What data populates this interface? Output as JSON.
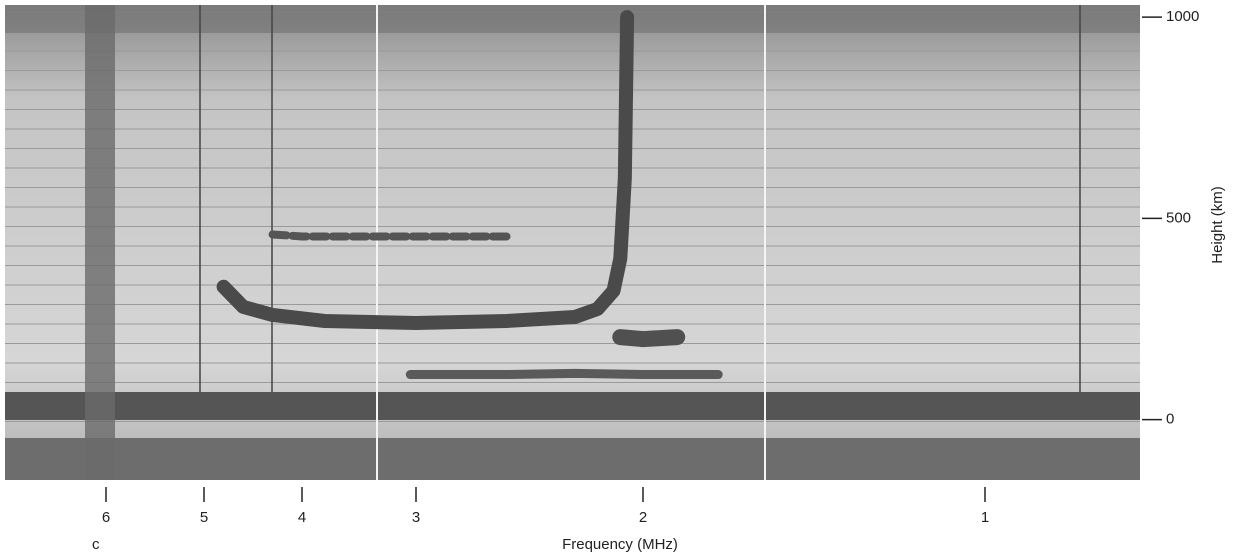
{
  "chart_data": {
    "type": "line",
    "x_label": "Frequency (MHz)",
    "y_label": "Height (km)",
    "corner_label": "c",
    "xlim": [
      7.0,
      0.55
    ],
    "xticks": [
      6,
      5,
      4,
      3,
      2,
      1
    ],
    "ylim": [
      -150,
      1030
    ],
    "yticks": [
      0,
      500,
      1000
    ],
    "series": [
      {
        "color": "#4a4a4a",
        "x": [
          4.8,
          4.6,
          4.3,
          3.8,
          3.0,
          2.6,
          2.3,
          2.2,
          2.13,
          2.1,
          2.08,
          2.07
        ],
        "values": [
          330,
          280,
          260,
          245,
          240,
          245,
          255,
          275,
          320,
          400,
          600,
          1000
        ]
      },
      {
        "color": "#555555",
        "x": [
          4.3,
          4.0,
          3.5,
          3.0,
          2.6
        ],
        "values": [
          460,
          455,
          455,
          455,
          455
        ]
      },
      {
        "color": "#505050",
        "x": [
          2.1,
          2.0,
          1.9
        ],
        "values": [
          205,
          200,
          205
        ]
      },
      {
        "color": "#5a5a5a",
        "x": [
          3.05,
          2.6,
          2.3,
          2.0,
          1.78
        ],
        "values": [
          112,
          112,
          115,
          112,
          112
        ]
      }
    ]
  }
}
